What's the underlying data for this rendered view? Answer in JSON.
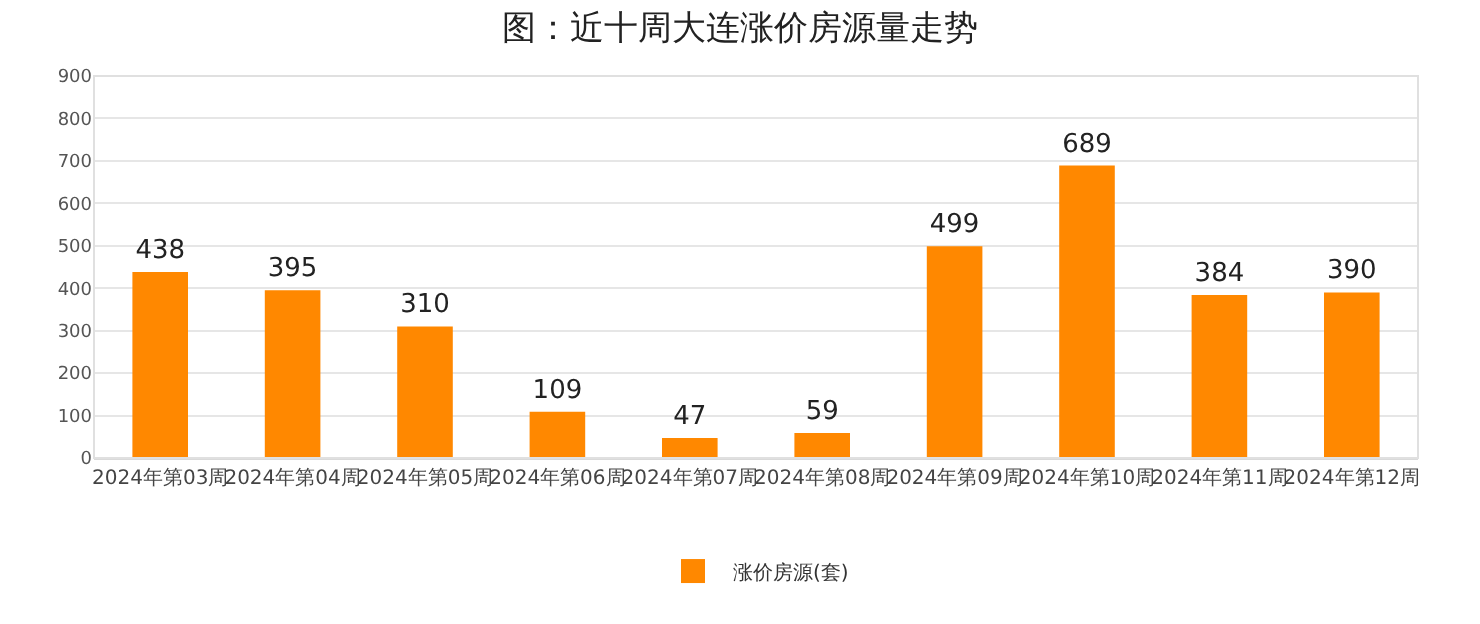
{
  "chart_data": {
    "type": "bar",
    "title": "图：近十周大连涨价房源量走势",
    "categories": [
      "2024年第03周",
      "2024年第04周",
      "2024年第05周",
      "2024年第06周",
      "2024年第07周",
      "2024年第08周",
      "2024年第09周",
      "2024年第10周",
      "2024年第11周",
      "2024年第12周"
    ],
    "series": [
      {
        "name": "涨价房源(套)",
        "color": "#ff8800",
        "values": [
          438,
          395,
          310,
          109,
          47,
          59,
          499,
          689,
          384,
          390
        ]
      }
    ],
    "ylim": [
      0,
      900
    ],
    "yticks": [
      0,
      100,
      200,
      300,
      400,
      500,
      600,
      700,
      800,
      900
    ],
    "grid": "y",
    "legend": "bottom",
    "data_labels": true
  }
}
